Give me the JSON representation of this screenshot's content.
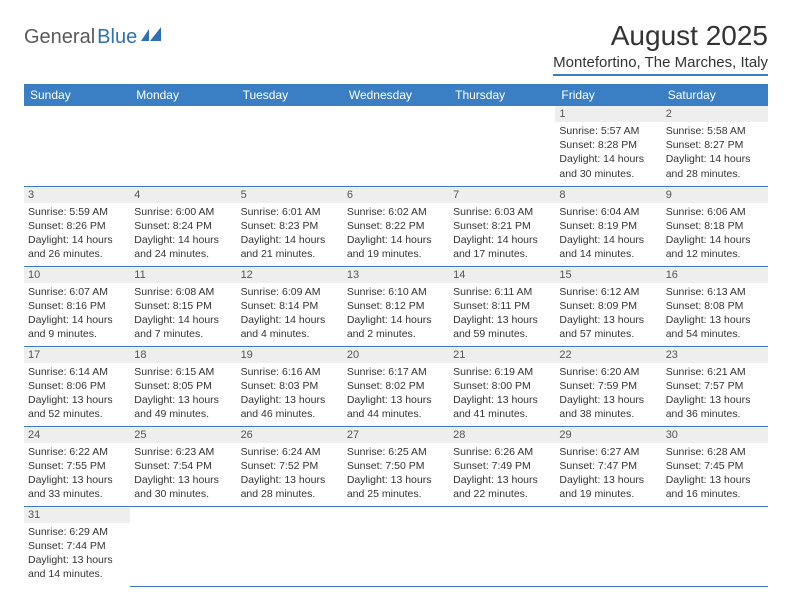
{
  "logo": {
    "part1": "General",
    "part2": "Blue"
  },
  "title": "August 2025",
  "location": "Montefortino, The Marches, Italy",
  "colors": {
    "header_bg": "#3a7fc4",
    "header_text": "#ffffff",
    "daynum_bg": "#eeeeee",
    "border": "#3a7fc4",
    "logo_gray": "#5a5a5a",
    "logo_blue": "#2e6fb5"
  },
  "weekdays": [
    "Sunday",
    "Monday",
    "Tuesday",
    "Wednesday",
    "Thursday",
    "Friday",
    "Saturday"
  ],
  "weeks": [
    [
      null,
      null,
      null,
      null,
      null,
      {
        "n": "1",
        "sr": "Sunrise: 5:57 AM",
        "ss": "Sunset: 8:28 PM",
        "dl1": "Daylight: 14 hours",
        "dl2": "and 30 minutes."
      },
      {
        "n": "2",
        "sr": "Sunrise: 5:58 AM",
        "ss": "Sunset: 8:27 PM",
        "dl1": "Daylight: 14 hours",
        "dl2": "and 28 minutes."
      }
    ],
    [
      {
        "n": "3",
        "sr": "Sunrise: 5:59 AM",
        "ss": "Sunset: 8:26 PM",
        "dl1": "Daylight: 14 hours",
        "dl2": "and 26 minutes."
      },
      {
        "n": "4",
        "sr": "Sunrise: 6:00 AM",
        "ss": "Sunset: 8:24 PM",
        "dl1": "Daylight: 14 hours",
        "dl2": "and 24 minutes."
      },
      {
        "n": "5",
        "sr": "Sunrise: 6:01 AM",
        "ss": "Sunset: 8:23 PM",
        "dl1": "Daylight: 14 hours",
        "dl2": "and 21 minutes."
      },
      {
        "n": "6",
        "sr": "Sunrise: 6:02 AM",
        "ss": "Sunset: 8:22 PM",
        "dl1": "Daylight: 14 hours",
        "dl2": "and 19 minutes."
      },
      {
        "n": "7",
        "sr": "Sunrise: 6:03 AM",
        "ss": "Sunset: 8:21 PM",
        "dl1": "Daylight: 14 hours",
        "dl2": "and 17 minutes."
      },
      {
        "n": "8",
        "sr": "Sunrise: 6:04 AM",
        "ss": "Sunset: 8:19 PM",
        "dl1": "Daylight: 14 hours",
        "dl2": "and 14 minutes."
      },
      {
        "n": "9",
        "sr": "Sunrise: 6:06 AM",
        "ss": "Sunset: 8:18 PM",
        "dl1": "Daylight: 14 hours",
        "dl2": "and 12 minutes."
      }
    ],
    [
      {
        "n": "10",
        "sr": "Sunrise: 6:07 AM",
        "ss": "Sunset: 8:16 PM",
        "dl1": "Daylight: 14 hours",
        "dl2": "and 9 minutes."
      },
      {
        "n": "11",
        "sr": "Sunrise: 6:08 AM",
        "ss": "Sunset: 8:15 PM",
        "dl1": "Daylight: 14 hours",
        "dl2": "and 7 minutes."
      },
      {
        "n": "12",
        "sr": "Sunrise: 6:09 AM",
        "ss": "Sunset: 8:14 PM",
        "dl1": "Daylight: 14 hours",
        "dl2": "and 4 minutes."
      },
      {
        "n": "13",
        "sr": "Sunrise: 6:10 AM",
        "ss": "Sunset: 8:12 PM",
        "dl1": "Daylight: 14 hours",
        "dl2": "and 2 minutes."
      },
      {
        "n": "14",
        "sr": "Sunrise: 6:11 AM",
        "ss": "Sunset: 8:11 PM",
        "dl1": "Daylight: 13 hours",
        "dl2": "and 59 minutes."
      },
      {
        "n": "15",
        "sr": "Sunrise: 6:12 AM",
        "ss": "Sunset: 8:09 PM",
        "dl1": "Daylight: 13 hours",
        "dl2": "and 57 minutes."
      },
      {
        "n": "16",
        "sr": "Sunrise: 6:13 AM",
        "ss": "Sunset: 8:08 PM",
        "dl1": "Daylight: 13 hours",
        "dl2": "and 54 minutes."
      }
    ],
    [
      {
        "n": "17",
        "sr": "Sunrise: 6:14 AM",
        "ss": "Sunset: 8:06 PM",
        "dl1": "Daylight: 13 hours",
        "dl2": "and 52 minutes."
      },
      {
        "n": "18",
        "sr": "Sunrise: 6:15 AM",
        "ss": "Sunset: 8:05 PM",
        "dl1": "Daylight: 13 hours",
        "dl2": "and 49 minutes."
      },
      {
        "n": "19",
        "sr": "Sunrise: 6:16 AM",
        "ss": "Sunset: 8:03 PM",
        "dl1": "Daylight: 13 hours",
        "dl2": "and 46 minutes."
      },
      {
        "n": "20",
        "sr": "Sunrise: 6:17 AM",
        "ss": "Sunset: 8:02 PM",
        "dl1": "Daylight: 13 hours",
        "dl2": "and 44 minutes."
      },
      {
        "n": "21",
        "sr": "Sunrise: 6:19 AM",
        "ss": "Sunset: 8:00 PM",
        "dl1": "Daylight: 13 hours",
        "dl2": "and 41 minutes."
      },
      {
        "n": "22",
        "sr": "Sunrise: 6:20 AM",
        "ss": "Sunset: 7:59 PM",
        "dl1": "Daylight: 13 hours",
        "dl2": "and 38 minutes."
      },
      {
        "n": "23",
        "sr": "Sunrise: 6:21 AM",
        "ss": "Sunset: 7:57 PM",
        "dl1": "Daylight: 13 hours",
        "dl2": "and 36 minutes."
      }
    ],
    [
      {
        "n": "24",
        "sr": "Sunrise: 6:22 AM",
        "ss": "Sunset: 7:55 PM",
        "dl1": "Daylight: 13 hours",
        "dl2": "and 33 minutes."
      },
      {
        "n": "25",
        "sr": "Sunrise: 6:23 AM",
        "ss": "Sunset: 7:54 PM",
        "dl1": "Daylight: 13 hours",
        "dl2": "and 30 minutes."
      },
      {
        "n": "26",
        "sr": "Sunrise: 6:24 AM",
        "ss": "Sunset: 7:52 PM",
        "dl1": "Daylight: 13 hours",
        "dl2": "and 28 minutes."
      },
      {
        "n": "27",
        "sr": "Sunrise: 6:25 AM",
        "ss": "Sunset: 7:50 PM",
        "dl1": "Daylight: 13 hours",
        "dl2": "and 25 minutes."
      },
      {
        "n": "28",
        "sr": "Sunrise: 6:26 AM",
        "ss": "Sunset: 7:49 PM",
        "dl1": "Daylight: 13 hours",
        "dl2": "and 22 minutes."
      },
      {
        "n": "29",
        "sr": "Sunrise: 6:27 AM",
        "ss": "Sunset: 7:47 PM",
        "dl1": "Daylight: 13 hours",
        "dl2": "and 19 minutes."
      },
      {
        "n": "30",
        "sr": "Sunrise: 6:28 AM",
        "ss": "Sunset: 7:45 PM",
        "dl1": "Daylight: 13 hours",
        "dl2": "and 16 minutes."
      }
    ],
    [
      {
        "n": "31",
        "sr": "Sunrise: 6:29 AM",
        "ss": "Sunset: 7:44 PM",
        "dl1": "Daylight: 13 hours",
        "dl2": "and 14 minutes."
      },
      null,
      null,
      null,
      null,
      null,
      null
    ]
  ]
}
